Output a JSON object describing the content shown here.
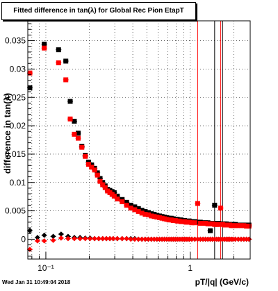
{
  "title": "Fitted difference in tan(λ) for Global Rec Pion EtapT",
  "timestamp": "Wed Jan 31 10:49:04 2018",
  "colors": {
    "series_black": "#000000",
    "series_red": "#ff0000",
    "frame": "#000000",
    "background": "#ffffff"
  },
  "chart_data": {
    "type": "scatter",
    "title": "Fitted difference in tan(λ) for Global Rec Pion EtapT",
    "xlabel": "pT/|q| (GeV/c)",
    "ylabel": "difference in tan(λ)",
    "xscale": "log",
    "xlim": [
      0.075,
      2.6
    ],
    "ylim": [
      -0.0035,
      0.0385
    ],
    "grid": true,
    "legend": "none",
    "x_ticks": [
      {
        "value": 0.1,
        "label": "10⁻¹"
      },
      {
        "value": 1,
        "label": "1"
      }
    ],
    "y_ticks": [
      {
        "value": 0,
        "label": "0"
      },
      {
        "value": 0.005,
        "label": "0.005"
      },
      {
        "value": 0.01,
        "label": "0.01"
      },
      {
        "value": 0.015,
        "label": "0.015"
      },
      {
        "value": 0.02,
        "label": "0.02"
      },
      {
        "value": 0.025,
        "label": "0.025"
      },
      {
        "value": 0.03,
        "label": "0.03"
      },
      {
        "value": 0.035,
        "label": "0.035"
      }
    ],
    "series": [
      {
        "marker": "square",
        "color": "#000000",
        "x": [
          0.0775,
          0.0975,
          0.1225,
          0.1375,
          0.1475,
          0.1575,
          0.1675,
          0.1775,
          0.1875,
          0.1975,
          0.2075,
          0.2175,
          0.2275,
          0.2375,
          0.2475,
          0.2575,
          0.2675,
          0.2775,
          0.2875,
          0.2975,
          0.3125,
          0.3375,
          0.3625,
          0.3875,
          0.4125,
          0.4375,
          0.4625,
          0.4875,
          0.5125,
          0.5375,
          0.5625,
          0.5875,
          0.6125,
          0.6375,
          0.6625,
          0.6875,
          0.7125,
          0.7375,
          0.7625,
          0.7875,
          0.8125,
          0.8375,
          0.8625,
          0.8875,
          0.9125,
          0.9375,
          0.9625,
          0.9875,
          1.025,
          1.075,
          1.125,
          1.175,
          1.225,
          1.275,
          1.325,
          1.375,
          1.425,
          1.475,
          1.525,
          1.575,
          1.625,
          1.675,
          1.725,
          1.775,
          1.825,
          1.875,
          1.925,
          1.975,
          2.05,
          2.15,
          2.25,
          2.35,
          2.45,
          2.55
        ],
        "y": [
          0.0267,
          0.0344,
          0.0334,
          0.0314,
          0.0243,
          0.0208,
          0.0187,
          0.0164,
          0.0148,
          0.0136,
          0.0131,
          0.0125,
          0.0117,
          0.0107,
          0.01,
          0.0094,
          0.0088,
          0.0086,
          0.0084,
          0.0082,
          0.0076,
          0.007,
          0.0065,
          0.006,
          0.0057,
          0.0054,
          0.0051,
          0.0049,
          0.0047,
          0.0045,
          0.0044,
          0.0042,
          0.0041,
          0.004,
          0.0039,
          0.0038,
          0.0037,
          0.0037,
          0.0036,
          0.0035,
          0.0035,
          0.0034,
          0.0034,
          0.0033,
          0.0033,
          0.0032,
          0.0032,
          0.0032,
          0.0031,
          0.0031,
          0.003,
          0.003,
          0.0029,
          0.0029,
          0.0029,
          0.0015,
          0.0028,
          0.006,
          0.0028,
          0.0028,
          0.0027,
          0.0027,
          0.0027,
          0.0027,
          0.0026,
          0.0026,
          0.0026,
          0.0026,
          0.0026,
          0.0025,
          0.0025,
          0.0025,
          0.0025,
          0.0025
        ]
      },
      {
        "marker": "square",
        "color": "#ff0000",
        "x": [
          0.0775,
          0.0975,
          0.1225,
          0.1375,
          0.1475,
          0.1575,
          0.1675,
          0.1775,
          0.1875,
          0.1975,
          0.2075,
          0.2175,
          0.2275,
          0.2375,
          0.2475,
          0.2575,
          0.2675,
          0.2775,
          0.2875,
          0.2975,
          0.3125,
          0.3375,
          0.3625,
          0.3875,
          0.4125,
          0.4375,
          0.4625,
          0.4875,
          0.5125,
          0.5375,
          0.5625,
          0.5875,
          0.6125,
          0.6375,
          0.6625,
          0.6875,
          0.7125,
          0.7375,
          0.7625,
          0.7875,
          0.8125,
          0.8375,
          0.8625,
          0.8875,
          0.9125,
          0.9375,
          0.9625,
          0.9875,
          1.025,
          1.075,
          1.125,
          1.175,
          1.225,
          1.275,
          1.325,
          1.375,
          1.425,
          1.475,
          1.525,
          1.575,
          1.625,
          1.675,
          1.725,
          1.775,
          1.825,
          1.875,
          1.925,
          1.975,
          2.05,
          2.15,
          2.25,
          2.35,
          2.45,
          2.55
        ],
        "y": [
          0.0293,
          0.0337,
          0.0311,
          0.0281,
          0.0212,
          0.0185,
          0.0178,
          0.0162,
          0.0146,
          0.0132,
          0.0127,
          0.0122,
          0.0113,
          0.0102,
          0.0096,
          0.0091,
          0.0085,
          0.0082,
          0.0079,
          0.0076,
          0.0071,
          0.0066,
          0.006,
          0.0055,
          0.0052,
          0.0049,
          0.0046,
          0.0044,
          0.0043,
          0.0041,
          0.004,
          0.0039,
          0.0038,
          0.0037,
          0.0036,
          0.0035,
          0.0034,
          0.0034,
          0.0033,
          0.0033,
          0.0032,
          0.0032,
          0.0031,
          0.0031,
          0.0031,
          0.003,
          0.003,
          0.003,
          0.0029,
          0.0029,
          0.0063,
          0.0028,
          0.0028,
          0.0028,
          0.0027,
          0.0027,
          0.0027,
          0.0026,
          0.0026,
          0.0026,
          0.0055,
          0.0026,
          0.0025,
          0.0025,
          0.0025,
          0.0025,
          0.0024,
          0.0024,
          0.0024,
          0.0024,
          0.0024,
          0.0024,
          0.0023,
          0.0023
        ]
      },
      {
        "marker": "diamond",
        "color": "#000000",
        "x": [
          0.0775,
          0.0875,
          0.0975,
          0.1125,
          0.1275,
          0.1425,
          0.1575,
          0.1725,
          0.1875,
          0.2025,
          0.2175,
          0.2325,
          0.2475,
          0.2625,
          0.2775,
          0.2925,
          0.3125,
          0.3375,
          0.3625,
          0.3875,
          0.4125,
          0.4375,
          0.4625,
          0.4875,
          0.5125,
          0.5375,
          0.5625,
          0.5875,
          0.6125,
          0.6375,
          0.6625,
          0.6875,
          0.7125,
          0.7375,
          0.7625,
          0.7875,
          0.8125,
          0.8375,
          0.8625,
          0.8875,
          0.9125,
          0.9375,
          0.9625,
          0.9875,
          1.025,
          1.075,
          1.125,
          1.175,
          1.225,
          1.275,
          1.325,
          1.375,
          1.425,
          1.475,
          1.525,
          1.575,
          1.625,
          1.675,
          1.725,
          1.775,
          1.825,
          1.875,
          1.925,
          1.975,
          2.05,
          2.15,
          2.25,
          2.35,
          2.45,
          2.55
        ],
        "y": [
          0.0015,
          0.0003,
          0.0007,
          0.0005,
          0.0009,
          0.0005,
          0.0003,
          0.0003,
          0.0002,
          0.0002,
          0.0001,
          0.0001,
          0.0001,
          0.0001,
          0.0001,
          0.0001,
          0.0001,
          0.0001,
          0.0001,
          0.0001,
          0.0001,
          0.0,
          0.0,
          0.0,
          0.0,
          0.0,
          0.0,
          0.0,
          0.0,
          0.0,
          0.0,
          0.0,
          0.0,
          0.0,
          0.0,
          0.0,
          0.0,
          0.0,
          0.0,
          0.0,
          0.0,
          0.0,
          0.0,
          0.0,
          0.0,
          0.0,
          0.0,
          0.0,
          0.0,
          0.0,
          0.0,
          0.0,
          0.0,
          0.0,
          0.0,
          0.0,
          0.0,
          0.0,
          0.0,
          0.0,
          0.0,
          0.0,
          0.0,
          0.0,
          0.0,
          0.0,
          0.0,
          0.0,
          0.0,
          0.0
        ]
      },
      {
        "marker": "diamond",
        "color": "#ff0000",
        "x": [
          0.0775,
          0.0875,
          0.0975,
          0.1125,
          0.1275,
          0.1425,
          0.1575,
          0.1725,
          0.1875,
          0.2025,
          0.2175,
          0.2325,
          0.2475,
          0.2625,
          0.2775,
          0.2925,
          0.3125,
          0.3375,
          0.3625,
          0.3875,
          0.4125,
          0.4375,
          0.4625,
          0.4875,
          0.5125,
          0.5375,
          0.5625,
          0.5875,
          0.6125,
          0.6375,
          0.6625,
          0.6875,
          0.7125,
          0.7375,
          0.7625,
          0.7875,
          0.8125,
          0.8375,
          0.8625,
          0.8875,
          0.9125,
          0.9375,
          0.9625,
          0.9875,
          1.025,
          1.075,
          1.125,
          1.175,
          1.225,
          1.275,
          1.325,
          1.375,
          1.425,
          1.475,
          1.525,
          1.575,
          1.625,
          1.675,
          1.725,
          1.775,
          1.825,
          1.875,
          1.925,
          1.975,
          2.05,
          2.15,
          2.25,
          2.35,
          2.45,
          2.55
        ],
        "y": [
          -0.0018,
          -0.0003,
          -0.0003,
          -0.0002,
          0.0002,
          0.0001,
          0.0001,
          0.0001,
          0.0001,
          0.0001,
          0.0001,
          0.0001,
          0.0001,
          0.0001,
          0.0001,
          0.0001,
          0.0001,
          0.0001,
          0.0001,
          0.0,
          0.0,
          0.0,
          0.0,
          0.0,
          0.0,
          0.0,
          0.0,
          0.0,
          0.0,
          0.0,
          0.0,
          0.0,
          0.0,
          0.0,
          0.0,
          0.0,
          0.0,
          0.0,
          0.0,
          0.0,
          0.0,
          0.0,
          0.0,
          0.0,
          0.0,
          0.0,
          0.0,
          0.0,
          0.0,
          0.0,
          0.0,
          0.0,
          0.0,
          0.0,
          0.0,
          0.0,
          0.0,
          0.0,
          0.0,
          0.0,
          0.0,
          0.0,
          0.0,
          0.0,
          0.0,
          0.0,
          0.0,
          0.0,
          0.0,
          0.0
        ]
      }
    ],
    "error_bars": [
      {
        "x": 1.125,
        "ymin": -0.0035,
        "ymax": 0.0385,
        "color": "#ff0000"
      },
      {
        "x": 1.475,
        "ymin": -0.0035,
        "ymax": 0.0385,
        "color": "#000000"
      },
      {
        "x": 1.675,
        "ymin": -0.0035,
        "ymax": 0.0385,
        "color": "#000000"
      },
      {
        "x": 1.625,
        "ymin": -0.0035,
        "ymax": 0.0385,
        "color": "#ff0000"
      }
    ]
  }
}
